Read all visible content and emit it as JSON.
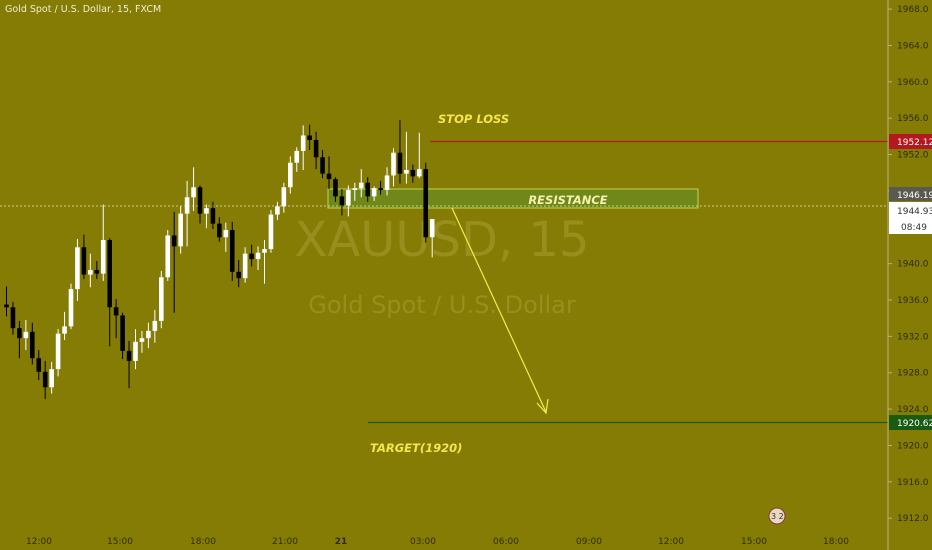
{
  "header": {
    "title": "Gold Spot / U.S. Dollar, 15, FXCM"
  },
  "watermark": {
    "symbol": "XAUUSD, 15",
    "description": "Gold Spot / U.S. Dollar"
  },
  "colors": {
    "background": "#857c06",
    "bull_candle": "#ffffff",
    "bear_candle": "#000000",
    "stop_line": "#b3191f",
    "target_line": "#1a5a12",
    "resistance_fill": "#6e8a1b",
    "arrow": "#f2ee4a",
    "annotation_text": "#f5e64a",
    "price_badge_bg": "#ffffff"
  },
  "chart_data": {
    "type": "candlestick",
    "title": "Gold Spot / U.S. Dollar, 15, FXCM",
    "ylim": [
      1908.5,
      1969
    ],
    "y_ticks": [
      1912,
      1916,
      1920,
      1924,
      1928,
      1932,
      1936,
      1940,
      1944,
      1948,
      1952,
      1956,
      1960,
      1964,
      1968
    ],
    "x_ticks": [
      "12:00",
      "15:00",
      "18:00",
      "21:00",
      "21",
      "03:00",
      "06:00",
      "09:00",
      "12:00",
      "15:00",
      "18:00"
    ],
    "grid": false,
    "candles": [
      {
        "o": 1935.5,
        "h": 1937.5,
        "l": 1934.2,
        "c": 1935.2
      },
      {
        "o": 1935.2,
        "h": 1935.8,
        "l": 1932.2,
        "c": 1932.9
      },
      {
        "o": 1932.9,
        "h": 1933.7,
        "l": 1929.6,
        "c": 1931.8
      },
      {
        "o": 1931.8,
        "h": 1933.8,
        "l": 1930.5,
        "c": 1932.5
      },
      {
        "o": 1932.5,
        "h": 1933.5,
        "l": 1928.9,
        "c": 1929.6
      },
      {
        "o": 1929.6,
        "h": 1930.5,
        "l": 1927.2,
        "c": 1928.1
      },
      {
        "o": 1928.1,
        "h": 1929.3,
        "l": 1925.1,
        "c": 1926.4
      },
      {
        "o": 1926.4,
        "h": 1929.2,
        "l": 1925.7,
        "c": 1928.4
      },
      {
        "o": 1928.4,
        "h": 1932.8,
        "l": 1927.6,
        "c": 1932.3
      },
      {
        "o": 1932.3,
        "h": 1934.7,
        "l": 1931.6,
        "c": 1933.1
      },
      {
        "o": 1933.1,
        "h": 1937.8,
        "l": 1932.8,
        "c": 1937.2
      },
      {
        "o": 1937.2,
        "h": 1942.7,
        "l": 1935.9,
        "c": 1941.8
      },
      {
        "o": 1941.8,
        "h": 1943.2,
        "l": 1938.3,
        "c": 1938.8
      },
      {
        "o": 1938.8,
        "h": 1941.1,
        "l": 1937.4,
        "c": 1939.3
      },
      {
        "o": 1939.3,
        "h": 1940.3,
        "l": 1938.3,
        "c": 1938.9
      },
      {
        "o": 1938.9,
        "h": 1946.5,
        "l": 1938.1,
        "c": 1942.6
      },
      {
        "o": 1942.6,
        "h": 1942.8,
        "l": 1930.9,
        "c": 1935.2
      },
      {
        "o": 1935.2,
        "h": 1936.1,
        "l": 1931.8,
        "c": 1934.3
      },
      {
        "o": 1934.3,
        "h": 1934.6,
        "l": 1929.5,
        "c": 1930.4
      },
      {
        "o": 1930.4,
        "h": 1931.5,
        "l": 1926.3,
        "c": 1929.3
      },
      {
        "o": 1929.3,
        "h": 1932.8,
        "l": 1928.4,
        "c": 1931.4
      },
      {
        "o": 1931.4,
        "h": 1932.6,
        "l": 1930.2,
        "c": 1931.8
      },
      {
        "o": 1931.8,
        "h": 1933.5,
        "l": 1930.7,
        "c": 1932.6
      },
      {
        "o": 1932.6,
        "h": 1934.9,
        "l": 1931.3,
        "c": 1933.7
      },
      {
        "o": 1933.7,
        "h": 1939.2,
        "l": 1932.9,
        "c": 1938.5
      },
      {
        "o": 1938.5,
        "h": 1943.7,
        "l": 1938.1,
        "c": 1943.1
      },
      {
        "o": 1943.1,
        "h": 1945.7,
        "l": 1934.6,
        "c": 1941.9
      },
      {
        "o": 1941.9,
        "h": 1946.3,
        "l": 1941.1,
        "c": 1945.5
      },
      {
        "o": 1945.5,
        "h": 1949.1,
        "l": 1941.9,
        "c": 1947.3
      },
      {
        "o": 1947.3,
        "h": 1950.6,
        "l": 1945.8,
        "c": 1948.4
      },
      {
        "o": 1948.4,
        "h": 1948.6,
        "l": 1944.4,
        "c": 1945.5
      },
      {
        "o": 1945.5,
        "h": 1946.5,
        "l": 1943.9,
        "c": 1946.1
      },
      {
        "o": 1946.1,
        "h": 1946.8,
        "l": 1943.8,
        "c": 1944.4
      },
      {
        "o": 1944.4,
        "h": 1945.1,
        "l": 1942.4,
        "c": 1942.9
      },
      {
        "o": 1942.9,
        "h": 1944.5,
        "l": 1941.3,
        "c": 1943.7
      },
      {
        "o": 1943.7,
        "h": 1944.6,
        "l": 1938.1,
        "c": 1939.1
      },
      {
        "o": 1939.1,
        "h": 1940.4,
        "l": 1937.4,
        "c": 1938.4
      },
      {
        "o": 1938.4,
        "h": 1941.8,
        "l": 1937.9,
        "c": 1941.1
      },
      {
        "o": 1941.1,
        "h": 1942.1,
        "l": 1939.7,
        "c": 1940.5
      },
      {
        "o": 1940.5,
        "h": 1941.9,
        "l": 1939.3,
        "c": 1941.2
      },
      {
        "o": 1941.2,
        "h": 1942.6,
        "l": 1937.8,
        "c": 1941.6
      },
      {
        "o": 1941.6,
        "h": 1945.9,
        "l": 1941.2,
        "c": 1945.4
      },
      {
        "o": 1945.4,
        "h": 1946.8,
        "l": 1944.8,
        "c": 1946.3
      },
      {
        "o": 1946.3,
        "h": 1948.9,
        "l": 1945.6,
        "c": 1948.4
      },
      {
        "o": 1948.4,
        "h": 1951.8,
        "l": 1947.7,
        "c": 1951.1
      },
      {
        "o": 1951.1,
        "h": 1952.8,
        "l": 1950.1,
        "c": 1952.4
      },
      {
        "o": 1952.4,
        "h": 1955.2,
        "l": 1950.3,
        "c": 1954.1
      },
      {
        "o": 1954.1,
        "h": 1955.3,
        "l": 1952.5,
        "c": 1953.6
      },
      {
        "o": 1953.6,
        "h": 1954.5,
        "l": 1950.4,
        "c": 1951.7
      },
      {
        "o": 1951.7,
        "h": 1952.5,
        "l": 1949.4,
        "c": 1949.9
      },
      {
        "o": 1949.9,
        "h": 1951.8,
        "l": 1948.2,
        "c": 1949.3
      },
      {
        "o": 1949.3,
        "h": 1949.5,
        "l": 1946.8,
        "c": 1947.4
      },
      {
        "o": 1947.4,
        "h": 1948.2,
        "l": 1945.3,
        "c": 1946.4
      },
      {
        "o": 1946.4,
        "h": 1948.6,
        "l": 1945.2,
        "c": 1948.1
      },
      {
        "o": 1948.1,
        "h": 1948.9,
        "l": 1946.9,
        "c": 1948.3
      },
      {
        "o": 1948.3,
        "h": 1950.4,
        "l": 1947.3,
        "c": 1948.9
      },
      {
        "o": 1948.9,
        "h": 1949.5,
        "l": 1946.8,
        "c": 1947.4
      },
      {
        "o": 1947.4,
        "h": 1948.5,
        "l": 1946.9,
        "c": 1948.3
      },
      {
        "o": 1948.3,
        "h": 1949.1,
        "l": 1947.6,
        "c": 1948.1
      },
      {
        "o": 1948.1,
        "h": 1950.6,
        "l": 1947.5,
        "c": 1949.7
      },
      {
        "o": 1949.7,
        "h": 1952.7,
        "l": 1948.5,
        "c": 1952.2
      },
      {
        "o": 1952.2,
        "h": 1955.8,
        "l": 1948.8,
        "c": 1949.9
      },
      {
        "o": 1949.9,
        "h": 1954.5,
        "l": 1948.8,
        "c": 1950.3
      },
      {
        "o": 1950.3,
        "h": 1950.9,
        "l": 1948.9,
        "c": 1949.6
      },
      {
        "o": 1949.6,
        "h": 1954.4,
        "l": 1949.4,
        "c": 1950.4
      },
      {
        "o": 1950.4,
        "h": 1951.1,
        "l": 1942.3,
        "c": 1942.9
      },
      {
        "o": 1942.9,
        "h": 1944.9,
        "l": 1940.7,
        "c": 1944.9
      }
    ],
    "last_price": 1944.93
  },
  "levels": {
    "stop_loss": {
      "label": "STOP LOSS",
      "price": 1952.12,
      "badge": "1952.12"
    },
    "target": {
      "label": "TARGET(1920)",
      "price": 1920.62,
      "badge": "1920.62"
    },
    "resistance": {
      "label": "RESISTANCE",
      "top": 1947.7,
      "bottom": 1945.6
    }
  },
  "price_axis": {
    "badge_high": "1946.19",
    "badge_last": "1944.93",
    "badge_timer": "08:49"
  },
  "misc": {
    "indicator_badge": "3 2"
  }
}
